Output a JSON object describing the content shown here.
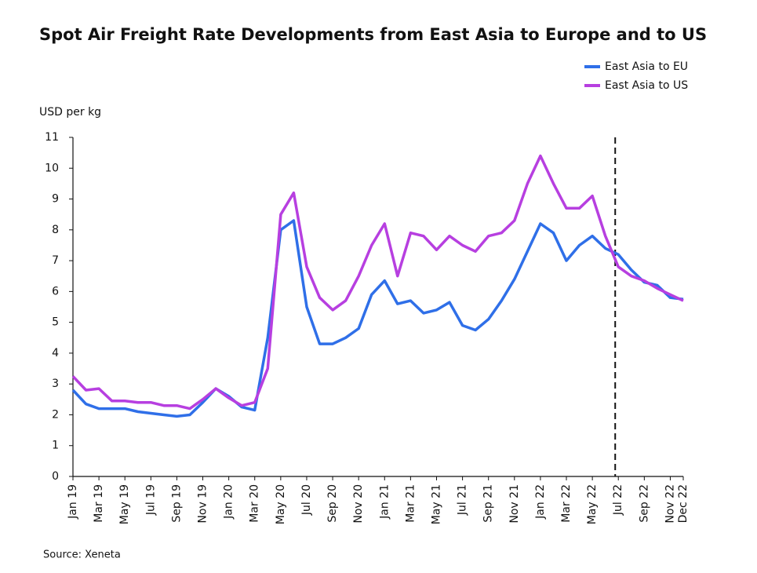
{
  "chart_data": {
    "type": "line",
    "title": "Spot Air Freight Rate Developments from East Asia to Europe and to US",
    "y_label": "USD per kg",
    "source": "Source: Xeneta",
    "categories": [
      "Jan 19",
      null,
      "Mar 19",
      null,
      "May 19",
      null,
      "Jul 19",
      null,
      "Sep 19",
      null,
      "Nov 19",
      null,
      "Jan 20",
      null,
      "Mar 20",
      null,
      "May 20",
      null,
      "Jul 20",
      null,
      "Sep 20",
      null,
      "Nov 20",
      null,
      "Jan 21",
      null,
      "Mar 21",
      null,
      "May 21",
      null,
      "Jul 21",
      null,
      "Sep 21",
      null,
      "Nov 21",
      null,
      "Jan 22",
      null,
      "Mar 22",
      null,
      "May 22",
      null,
      "Jul 22",
      null,
      "Sep 22",
      null,
      "Nov 22",
      "Dec 22"
    ],
    "series": [
      {
        "name": "East Asia to EU",
        "color": "#2f6fe8",
        "values": [
          2.8,
          2.35,
          2.2,
          2.2,
          2.2,
          2.1,
          2.05,
          2.0,
          1.95,
          2.0,
          2.4,
          2.85,
          2.6,
          2.25,
          2.15,
          4.5,
          8.0,
          8.3,
          5.5,
          4.3,
          4.3,
          4.5,
          4.8,
          5.9,
          6.35,
          5.6,
          5.7,
          5.3,
          5.4,
          5.65,
          4.9,
          4.75,
          5.1,
          5.7,
          6.4,
          7.3,
          8.2,
          7.9,
          7.0,
          7.5,
          7.8,
          7.4,
          7.2,
          6.7,
          6.3,
          6.2,
          5.8,
          5.75
        ]
      },
      {
        "name": "East Asia to US",
        "color": "#b73fe0",
        "values": [
          3.25,
          2.8,
          2.85,
          2.45,
          2.45,
          2.4,
          2.4,
          2.3,
          2.3,
          2.2,
          2.5,
          2.85,
          2.55,
          2.3,
          2.4,
          3.5,
          8.5,
          9.2,
          6.8,
          5.8,
          5.4,
          5.7,
          6.5,
          7.5,
          8.2,
          6.5,
          7.9,
          7.8,
          7.35,
          7.8,
          7.5,
          7.3,
          7.8,
          7.9,
          8.3,
          9.5,
          10.4,
          9.5,
          8.7,
          8.7,
          9.1,
          7.8,
          6.8,
          6.5,
          6.35,
          6.1,
          5.9,
          5.7
        ]
      }
    ],
    "ylim": [
      0,
      11
    ],
    "yticks": [
      0,
      1,
      2,
      3,
      4,
      5,
      6,
      7,
      8,
      9,
      10,
      11
    ],
    "grid": false,
    "legend": "top-right",
    "vline_at": "Jul 22"
  }
}
